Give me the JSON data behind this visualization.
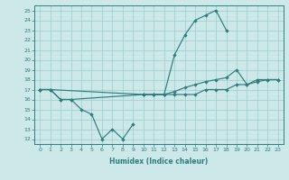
{
  "xlabel": "Humidex (Indice chaleur)",
  "color": "#2e7d7d",
  "bg_color": "#cce8e8",
  "grid_color": "#99cccc",
  "ylim": [
    11.5,
    25.5
  ],
  "xlim": [
    -0.5,
    23.5
  ],
  "yticks": [
    12,
    13,
    14,
    15,
    16,
    17,
    18,
    19,
    20,
    21,
    22,
    23,
    24,
    25
  ],
  "xticks": [
    0,
    1,
    2,
    3,
    4,
    5,
    6,
    7,
    8,
    9,
    10,
    11,
    12,
    13,
    14,
    15,
    16,
    17,
    18,
    19,
    20,
    21,
    22,
    23
  ],
  "line_low_x": [
    0,
    1,
    2,
    3,
    4,
    5,
    6,
    7,
    8,
    9
  ],
  "line_low_y": [
    17,
    17,
    16,
    16,
    15,
    14.5,
    12,
    13,
    12,
    13.5
  ],
  "line_high_x": [
    0,
    1,
    2,
    3,
    10,
    11,
    12,
    13,
    14,
    15,
    16,
    17,
    18
  ],
  "line_high_y": [
    17,
    17,
    16,
    16,
    16.5,
    16.5,
    16.5,
    20.5,
    22.5,
    24,
    24.5,
    25,
    23
  ],
  "line_flat_x": [
    0,
    1,
    10,
    11,
    12,
    13,
    14,
    15,
    16,
    17,
    18,
    19,
    20,
    21,
    22,
    23
  ],
  "line_flat_y": [
    17,
    17,
    16.5,
    16.5,
    16.5,
    16.8,
    17.2,
    17.5,
    17.8,
    18.0,
    18.2,
    19,
    17.5,
    17.8,
    18,
    18
  ],
  "line_right_x": [
    10,
    11,
    12,
    13,
    14,
    15,
    16,
    17,
    18,
    19,
    20,
    21,
    22,
    23
  ],
  "line_right_y": [
    16.5,
    16.5,
    16.5,
    16.5,
    16.5,
    16.5,
    17,
    17,
    17,
    17.5,
    17.5,
    18,
    18,
    18
  ]
}
